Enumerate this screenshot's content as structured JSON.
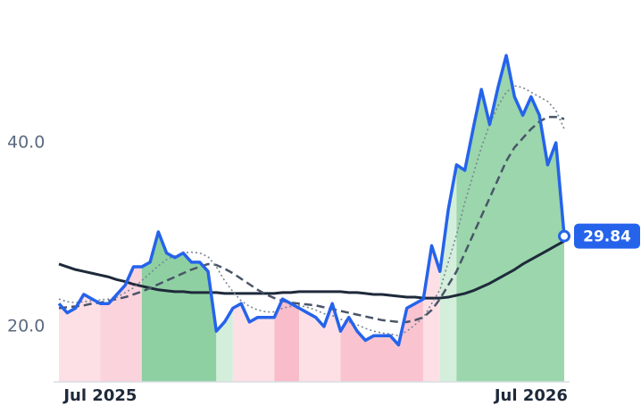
{
  "chart_data": {
    "type": "line",
    "categories": [
      null,
      null,
      null,
      null,
      null,
      "Jul 2025",
      null,
      null,
      null,
      null,
      null,
      null,
      null,
      null,
      null,
      null,
      null,
      null,
      null,
      null,
      null,
      null,
      null,
      null,
      null,
      null,
      null,
      null,
      null,
      null,
      null,
      null,
      null,
      null,
      null,
      null,
      null,
      null,
      null,
      null,
      null,
      null,
      null,
      null,
      null,
      null,
      null,
      null,
      null,
      null,
      null,
      null,
      null,
      null,
      null,
      null,
      null,
      "Jul 2026",
      null,
      null,
      null,
      null
    ],
    "ylim": [
      14,
      53.5
    ],
    "yticks": [
      {
        "value": 20,
        "label": "20.0"
      },
      {
        "value": 40,
        "label": "40.0"
      }
    ],
    "series": [
      {
        "color": "#1e2a3a",
        "style": "solid",
        "width": 3,
        "values": [
          26.8,
          26.5,
          26.2,
          26.0,
          25.8,
          25.6,
          25.4,
          25.1,
          24.9,
          24.6,
          24.4,
          24.2,
          24.0,
          23.9,
          23.8,
          23.8,
          23.7,
          23.7,
          23.7,
          23.7,
          23.6,
          23.6,
          23.6,
          23.6,
          23.6,
          23.6,
          23.6,
          23.7,
          23.7,
          23.8,
          23.8,
          23.8,
          23.8,
          23.8,
          23.8,
          23.7,
          23.7,
          23.6,
          23.5,
          23.5,
          23.4,
          23.3,
          23.2,
          23.2,
          23.1,
          23.1,
          23.1,
          23.2,
          23.4,
          23.6,
          23.9,
          24.3,
          24.7,
          25.2,
          25.7,
          26.2,
          26.8,
          27.3,
          27.8,
          28.3,
          28.8,
          29.3
        ]
      },
      {
        "color": "#4a5568",
        "style": "dashed",
        "width": 2.5,
        "values": [
          22,
          22.1,
          22.2,
          22.3,
          22.5,
          22.6,
          22.8,
          23,
          23.2,
          23.5,
          23.8,
          24.2,
          24.6,
          25,
          25.4,
          25.8,
          26.2,
          26.5,
          26.8,
          26.7,
          26.3,
          25.8,
          25.2,
          24.6,
          24,
          23.5,
          23.1,
          22.8,
          22.6,
          22.5,
          22.4,
          22.3,
          22.1,
          21.9,
          21.7,
          21.5,
          21.3,
          21.1,
          20.9,
          20.7,
          20.6,
          20.5,
          20.5,
          20.7,
          21,
          21.8,
          23,
          24.5,
          26,
          28,
          30,
          32,
          34,
          36,
          38,
          39.5,
          40.5,
          41.5,
          42.3,
          42.8,
          42.8,
          42.6
        ]
      },
      {
        "color": "#7a8494",
        "style": "dotted",
        "width": 1.6,
        "values": [
          23,
          22.7,
          22.6,
          22.7,
          22.8,
          22.9,
          23,
          23.2,
          23.7,
          24.2,
          25,
          25.8,
          26.6,
          27.3,
          27.7,
          28,
          28.1,
          28,
          27.6,
          26.5,
          25,
          23.8,
          22.8,
          22.2,
          21.8,
          21.6,
          21.6,
          22,
          22.2,
          22.3,
          22.1,
          21.8,
          21.4,
          21.2,
          20.8,
          20.5,
          20.2,
          19.8,
          19.5,
          19.3,
          19.2,
          19,
          19.5,
          20.2,
          21,
          22.5,
          24,
          27,
          30,
          33.5,
          36.5,
          39.5,
          42,
          44,
          45.5,
          46.2,
          46,
          45.5,
          45,
          44.5,
          43.5,
          41.5
        ]
      },
      {
        "color": "#2563eb",
        "style": "solid",
        "width": 3.5,
        "values": [
          22.5,
          21.5,
          22,
          23.5,
          23,
          22.5,
          22.5,
          23.5,
          24.5,
          26.5,
          26.5,
          27,
          30.3,
          28,
          27.5,
          28,
          27,
          27,
          26,
          19.5,
          20.5,
          22,
          22.5,
          20.5,
          21,
          21,
          21,
          23,
          22.5,
          22,
          21.5,
          21,
          20,
          22.5,
          19.5,
          21,
          19.5,
          18.5,
          19,
          19,
          19,
          18,
          22,
          22.5,
          23,
          28.8,
          26,
          32.7,
          37.6,
          37,
          41.5,
          45.8,
          42,
          46,
          49.5,
          45,
          43,
          45,
          43,
          37.6,
          40,
          29.84
        ]
      }
    ],
    "zones": [
      {
        "from": 0,
        "to": 5,
        "color": "#fde0e6"
      },
      {
        "from": 5,
        "to": 10,
        "color": "#fbd3dc"
      },
      {
        "from": 10,
        "to": 19,
        "color": "#8ed0a2"
      },
      {
        "from": 19,
        "to": 21,
        "color": "#d3eedb"
      },
      {
        "from": 21,
        "to": 26,
        "color": "#fde0e6"
      },
      {
        "from": 26,
        "to": 29,
        "color": "#f8bccb"
      },
      {
        "from": 29,
        "to": 34,
        "color": "#fde0e6"
      },
      {
        "from": 34,
        "to": 44,
        "color": "#f9c4d0"
      },
      {
        "from": 44,
        "to": 46,
        "color": "#fde0e6"
      },
      {
        "from": 46,
        "to": 48,
        "color": "#d3eedb"
      },
      {
        "from": 48,
        "to": 61,
        "color": "#9bd6ac"
      }
    ],
    "badge_color": "#2563eb"
  }
}
